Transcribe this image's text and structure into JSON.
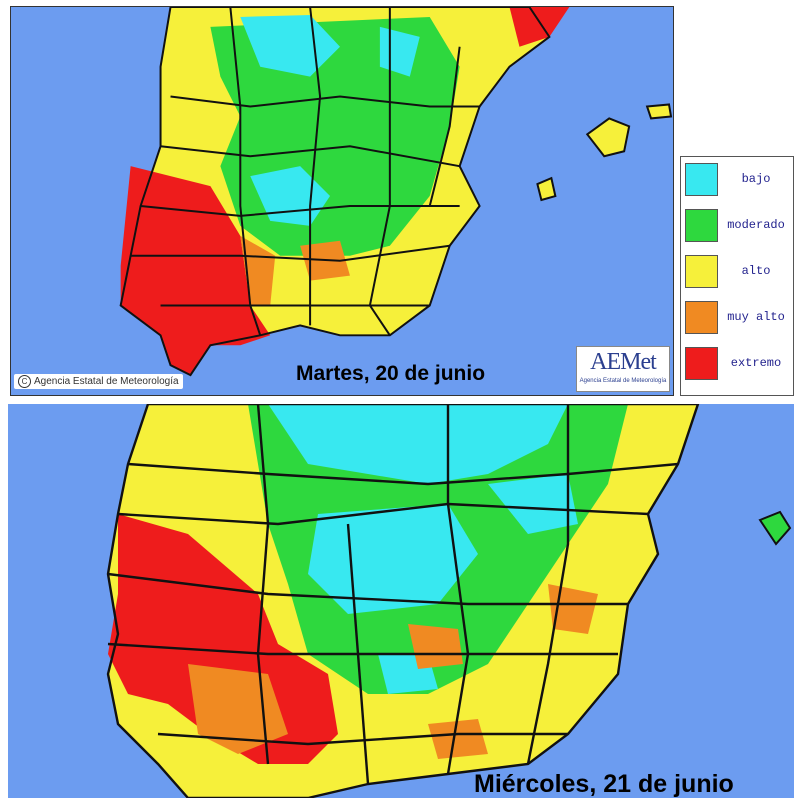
{
  "maps": {
    "top_caption": "Martes, 20 de junio",
    "bottom_caption": "Miércoles, 21 de junio"
  },
  "credit": {
    "copyright": "Agencia Estatal de Meteorología",
    "logo_text": "AEMet",
    "logo_subtext": "Agencia Estatal de Meteorología"
  },
  "legend": {
    "items": [
      {
        "label": "bajo",
        "color": "#38e8f0"
      },
      {
        "label": "moderado",
        "color": "#2ed83e"
      },
      {
        "label": "alto",
        "color": "#f6f03a"
      },
      {
        "label": "muy alto",
        "color": "#f08a22"
      },
      {
        "label": "extremo",
        "color": "#ee1c1c"
      }
    ]
  },
  "colors": {
    "sea": "#6c9cf0",
    "border": "#111111"
  }
}
